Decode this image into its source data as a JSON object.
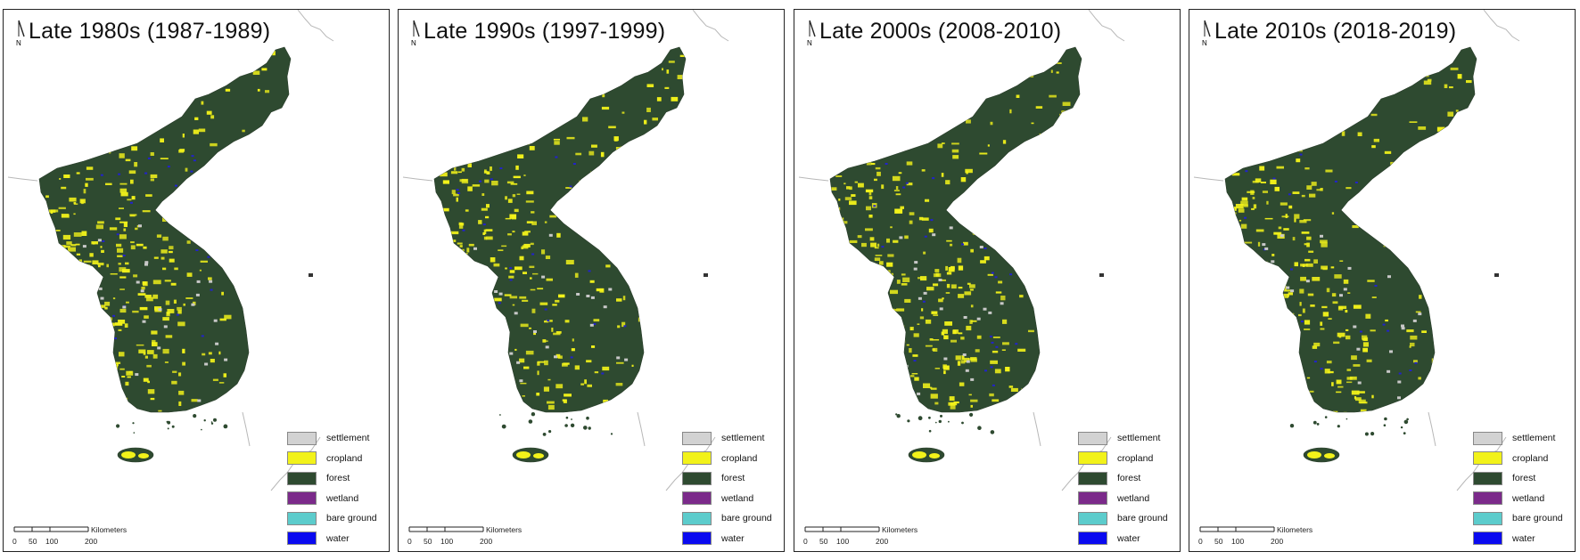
{
  "panels": [
    {
      "title": "Late 1980s (1987-1989)"
    },
    {
      "title": "Late 1990s (1997-1999)"
    },
    {
      "title": "Late 2000s (2008-2010)"
    },
    {
      "title": "Late 2010s (2018-2019)"
    }
  ],
  "north_label": "N",
  "legend": [
    {
      "label": "settlement",
      "color": "#d2d2d2"
    },
    {
      "label": "cropland",
      "color": "#f2f21a"
    },
    {
      "label": "forest",
      "color": "#2e4a30"
    },
    {
      "label": "wetland",
      "color": "#7b2a8a"
    },
    {
      "label": "bare ground",
      "color": "#5ccccc"
    },
    {
      "label": "water",
      "color": "#0a0af0"
    }
  ],
  "scale": {
    "unit": "Kilometers",
    "ticks": [
      "0",
      "50",
      "100",
      "200"
    ]
  },
  "colors": {
    "forest": "#2e4a30",
    "cropland": "#f2f21a",
    "outline": "#b8b8b8"
  }
}
